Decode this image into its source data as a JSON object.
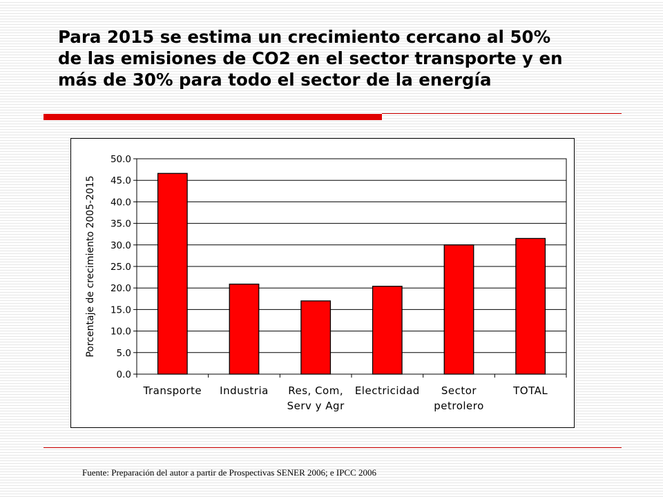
{
  "slide": {
    "title_lines": [
      "Para 2015 se estima un crecimiento cercano al 50%",
      "de las emisiones de CO2 en el sector transporte y en",
      "más de 30%  para todo el sector de la energía"
    ],
    "source": "Fuente: Preparación  del autor a partir de Prospectivas SENER 2006; e IPCC 2006",
    "accent_color": "#e00000"
  },
  "chart_data": {
    "type": "bar",
    "categories": [
      [
        "Transporte"
      ],
      [
        "Industria"
      ],
      [
        "Res, Com,",
        "Serv y Agr"
      ],
      [
        "Electricidad"
      ],
      [
        "Sector",
        "petrolero"
      ],
      [
        "TOTAL"
      ]
    ],
    "values": [
      46.6,
      20.9,
      17.0,
      20.4,
      30.0,
      31.5
    ],
    "ylabel": "Porcentaje de crecimiento 2005-2015",
    "ylim": [
      0,
      50
    ],
    "ytick_step": 5,
    "ytick_labels": [
      "0.0",
      "5.0",
      "10.0",
      "15.0",
      "20.0",
      "25.0",
      "30.0",
      "35.0",
      "40.0",
      "45.0",
      "50.0"
    ],
    "grid": true,
    "bar_color": "#ff0000",
    "legend": "none"
  }
}
